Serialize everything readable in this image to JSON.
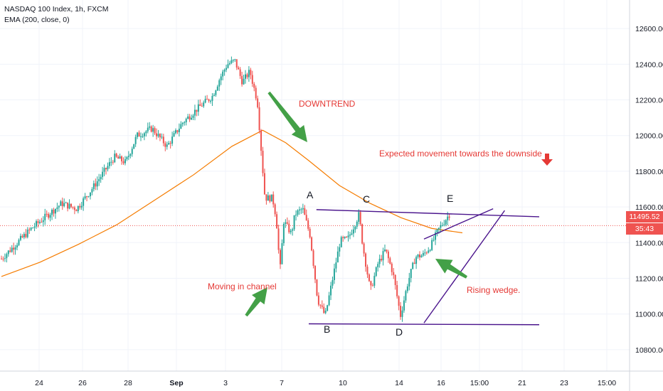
{
  "legend": {
    "symbol": "NASDAQ 100 Index, 1h, FXCM",
    "indicator": "EMA (200, close, 0)"
  },
  "price_badges": {
    "last_price": "11495.52",
    "countdown": "35:43"
  },
  "annotations": {
    "downtrend": "DOWNTREND",
    "expected": "Expected movement towards the downside",
    "channel": "Moving in channel",
    "wedge": "Rising wedge."
  },
  "points": {
    "A": "A",
    "B": "B",
    "C": "C",
    "D": "D",
    "E": "E"
  },
  "colors": {
    "up": "#26a69a",
    "down": "#ef5350",
    "ema": "#f57c00",
    "trendline": "#4a148c",
    "arrow": "#43a047",
    "annotation": "#e53935",
    "price_line": "#ef5350"
  },
  "chart_data": {
    "type": "candlestick",
    "y_ticks": [
      10800,
      11000,
      11200,
      11400,
      11600,
      11800,
      12000,
      12200,
      12400,
      12600
    ],
    "y_tick_labels": [
      "10800.00",
      "11000.00",
      "11200.00",
      "11400.00",
      "11600.00",
      "11800.00",
      "12000.00",
      "12200.00",
      "12400.00",
      "12600.00"
    ],
    "ylim": [
      10680,
      12760
    ],
    "x_tick_labels": [
      "24",
      "26",
      "28",
      "Sep",
      "3",
      "7",
      "10",
      "14",
      "16",
      "15:00",
      "21",
      "23",
      "15:00"
    ],
    "price_path": [
      [
        0,
        11310
      ],
      [
        8,
        11480
      ],
      [
        16,
        11620
      ],
      [
        20,
        11590
      ],
      [
        24,
        11700
      ],
      [
        30,
        11880
      ],
      [
        33,
        11850
      ],
      [
        36,
        12000
      ],
      [
        40,
        12040
      ],
      [
        44,
        11940
      ],
      [
        48,
        12070
      ],
      [
        52,
        12150
      ],
      [
        56,
        12220
      ],
      [
        58,
        12320
      ],
      [
        60,
        12400
      ],
      [
        62,
        12420
      ],
      [
        64,
        12300
      ],
      [
        66,
        12360
      ],
      [
        68,
        12190
      ],
      [
        70,
        11650
      ],
      [
        72,
        11650
      ],
      [
        73,
        11540
      ],
      [
        74,
        11240
      ],
      [
        75,
        11520
      ],
      [
        77,
        11450
      ],
      [
        78,
        11560
      ],
      [
        80,
        11590
      ],
      [
        82,
        11440
      ],
      [
        84,
        11080
      ],
      [
        86,
        10990
      ],
      [
        88,
        11200
      ],
      [
        90,
        11410
      ],
      [
        92,
        11420
      ],
      [
        94,
        11510
      ],
      [
        95,
        11560
      ],
      [
        96,
        11380
      ],
      [
        98,
        11130
      ],
      [
        100,
        11280
      ],
      [
        102,
        11360
      ],
      [
        104,
        11230
      ],
      [
        106,
        10990
      ],
      [
        108,
        11180
      ],
      [
        110,
        11320
      ],
      [
        112,
        11330
      ],
      [
        114,
        11380
      ],
      [
        116,
        11470
      ],
      [
        118,
        11530
      ],
      [
        119,
        11560
      ]
    ],
    "ema_200": [
      [
        0,
        11210
      ],
      [
        10,
        11290
      ],
      [
        20,
        11390
      ],
      [
        30,
        11500
      ],
      [
        40,
        11640
      ],
      [
        50,
        11780
      ],
      [
        60,
        11940
      ],
      [
        68,
        12030
      ],
      [
        74,
        11960
      ],
      [
        80,
        11860
      ],
      [
        88,
        11720
      ],
      [
        96,
        11620
      ],
      [
        104,
        11540
      ],
      [
        112,
        11480
      ],
      [
        120,
        11455
      ]
    ],
    "last_price": 11495.52,
    "countdown": "35:43",
    "pattern_points": {
      "A": [
        82,
        11585
      ],
      "B": [
        90,
        10945
      ],
      "C": [
        103,
        11575
      ],
      "D": [
        110,
        10955
      ],
      "E": [
        127,
        11580
      ]
    },
    "lines": {
      "channel_top": [
        [
          82,
          11585
        ],
        [
          140,
          11545
        ]
      ],
      "channel_bottom": [
        [
          80,
          10945
        ],
        [
          140,
          10940
        ]
      ],
      "wedge_upper": [
        [
          110,
          11420
        ],
        [
          128,
          11590
        ]
      ],
      "wedge_lower": [
        [
          110,
          10950
        ],
        [
          131,
          11580
        ]
      ]
    }
  }
}
